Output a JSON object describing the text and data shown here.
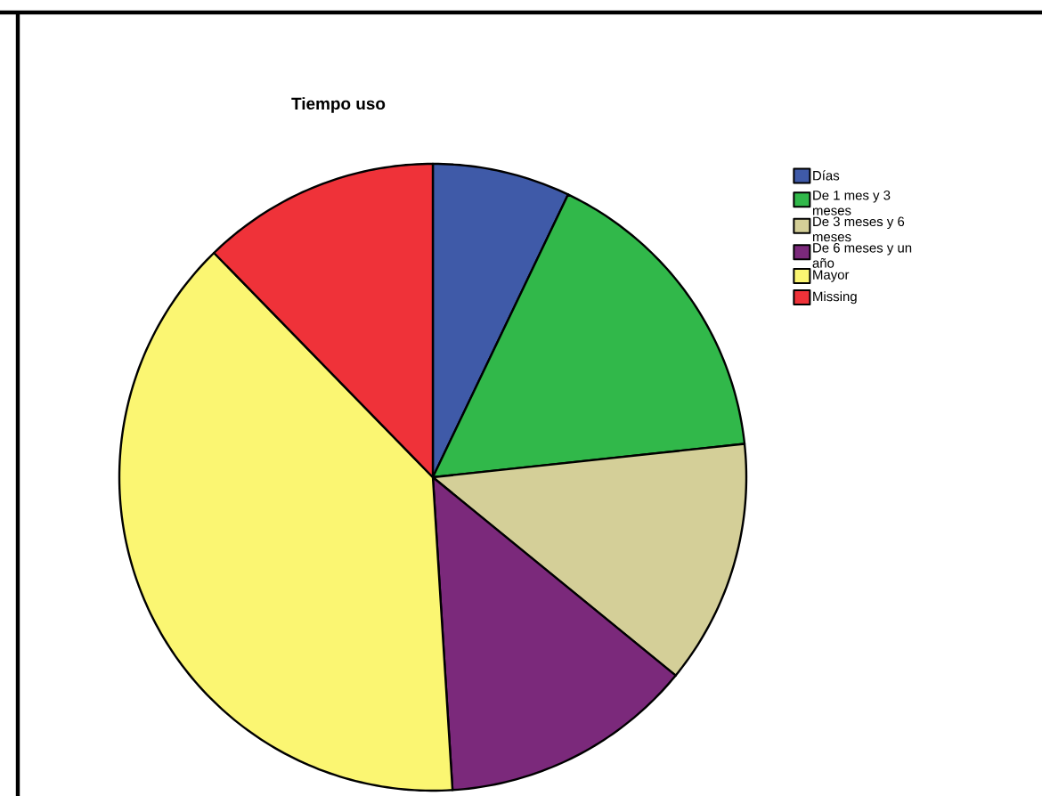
{
  "chart_data": {
    "type": "pie",
    "title": "Tiempo uso",
    "categories": [
      "Días",
      "De 1 mes y 3 meses",
      "De 3 meses y 6 meses",
      "De 6 meses y un año",
      "Mayor",
      "Missing"
    ],
    "values": [
      7.1,
      16.2,
      12.6,
      13.1,
      38.7,
      12.3
    ],
    "colors": [
      "#3f5aa8",
      "#31b84a",
      "#d4cf98",
      "#7b297b",
      "#fbf672",
      "#ef3239"
    ],
    "legend": "right"
  }
}
